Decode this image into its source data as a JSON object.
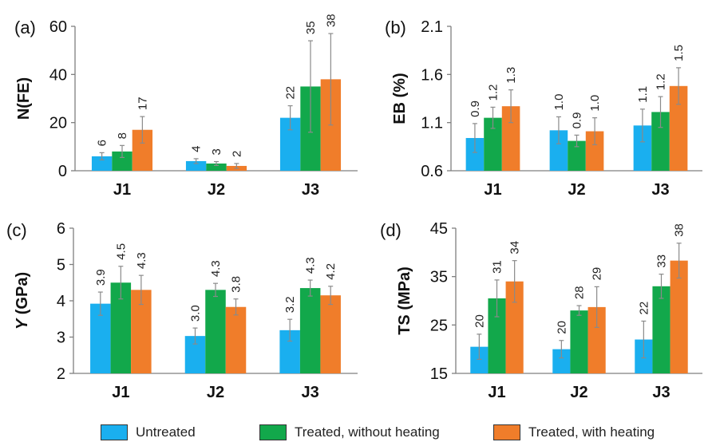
{
  "colors": {
    "series": [
      "#1aafef",
      "#12a84b",
      "#f07d2a"
    ],
    "axis": "#7f7f7f",
    "text": "#111111",
    "errorbar": "#8a8a8a"
  },
  "legend": [
    "Untreated",
    "Treated, without heating",
    "Treated, with heating"
  ],
  "chart_data": [
    {
      "type": "bar",
      "panel": "(a)",
      "ylabel": "N(FE)",
      "ylim": [
        0,
        60
      ],
      "yticks": [
        0,
        20,
        40,
        60
      ],
      "grid": false,
      "legend_placement": "bottom",
      "categories": [
        "J1",
        "J2",
        "J3"
      ],
      "series": [
        {
          "name": "Untreated",
          "values": [
            6,
            4,
            22
          ],
          "errors": [
            1.5,
            1.0,
            5
          ],
          "labels": [
            "6",
            "4",
            "22"
          ]
        },
        {
          "name": "Treated, without heating",
          "values": [
            8,
            3,
            35
          ],
          "errors": [
            2.5,
            0.8,
            19
          ],
          "labels": [
            "8",
            "3",
            "35"
          ]
        },
        {
          "name": "Treated, with heating",
          "values": [
            17,
            2,
            38
          ],
          "errors": [
            5.5,
            1.0,
            19
          ],
          "labels": [
            "17",
            "2",
            "38"
          ]
        }
      ]
    },
    {
      "type": "bar",
      "panel": "(b)",
      "ylabel": "EB (%)",
      "ylim": [
        0.6,
        2.1
      ],
      "yticks": [
        "0.6",
        "1.1",
        "1.6",
        "2.1"
      ],
      "grid": false,
      "legend_placement": "bottom",
      "categories": [
        "J1",
        "J2",
        "J3"
      ],
      "series": [
        {
          "name": "Untreated",
          "values": [
            0.94,
            1.02,
            1.07
          ],
          "errors": [
            0.15,
            0.14,
            0.17
          ],
          "labels": [
            "0.9",
            "1.0",
            "1.1"
          ]
        },
        {
          "name": "Treated, without heating",
          "values": [
            1.15,
            0.91,
            1.21
          ],
          "errors": [
            0.11,
            0.06,
            0.16
          ],
          "labels": [
            "1.2",
            "0.9",
            "1.2"
          ]
        },
        {
          "name": "Treated, with heating",
          "values": [
            1.27,
            1.01,
            1.48
          ],
          "errors": [
            0.17,
            0.14,
            0.19
          ],
          "labels": [
            "1.3",
            "1.0",
            "1.5"
          ]
        }
      ]
    },
    {
      "type": "bar",
      "panel": "(c)",
      "ylabel": "Y (GPa)",
      "ylim": [
        2,
        6
      ],
      "yticks": [
        2,
        3,
        4,
        5,
        6
      ],
      "grid": false,
      "legend_placement": "bottom",
      "categories": [
        "J1",
        "J2",
        "J3"
      ],
      "series": [
        {
          "name": "Untreated",
          "values": [
            3.92,
            3.03,
            3.19
          ],
          "errors": [
            0.32,
            0.22,
            0.3
          ],
          "labels": [
            "3.9",
            "3.0",
            "3.2"
          ]
        },
        {
          "name": "Treated, without heating",
          "values": [
            4.5,
            4.3,
            4.35
          ],
          "errors": [
            0.45,
            0.18,
            0.22
          ],
          "labels": [
            "4.5",
            "4.3",
            "4.3"
          ]
        },
        {
          "name": "Treated, with heating",
          "values": [
            4.3,
            3.83,
            4.15
          ],
          "errors": [
            0.4,
            0.22,
            0.25
          ],
          "labels": [
            "4.3",
            "3.8",
            "4.2"
          ]
        }
      ]
    },
    {
      "type": "bar",
      "panel": "(d)",
      "ylabel": "TS (MPa)",
      "ylim": [
        15,
        45
      ],
      "yticks": [
        15,
        25,
        35,
        45
      ],
      "grid": false,
      "legend_placement": "bottom",
      "categories": [
        "J1",
        "J2",
        "J3"
      ],
      "series": [
        {
          "name": "Untreated",
          "values": [
            20.5,
            20,
            22
          ],
          "errors": [
            2.6,
            1.8,
            3.8
          ],
          "labels": [
            "20",
            "20",
            "22"
          ]
        },
        {
          "name": "Treated, without heating",
          "values": [
            30.5,
            28,
            33
          ],
          "errors": [
            3.8,
            1.0,
            2.5
          ],
          "labels": [
            "31",
            "28",
            "33"
          ]
        },
        {
          "name": "Treated, with heating",
          "values": [
            34,
            28.7,
            38.3
          ],
          "errors": [
            4.3,
            4.2,
            3.6
          ],
          "labels": [
            "34",
            "29",
            "38"
          ]
        }
      ]
    }
  ]
}
